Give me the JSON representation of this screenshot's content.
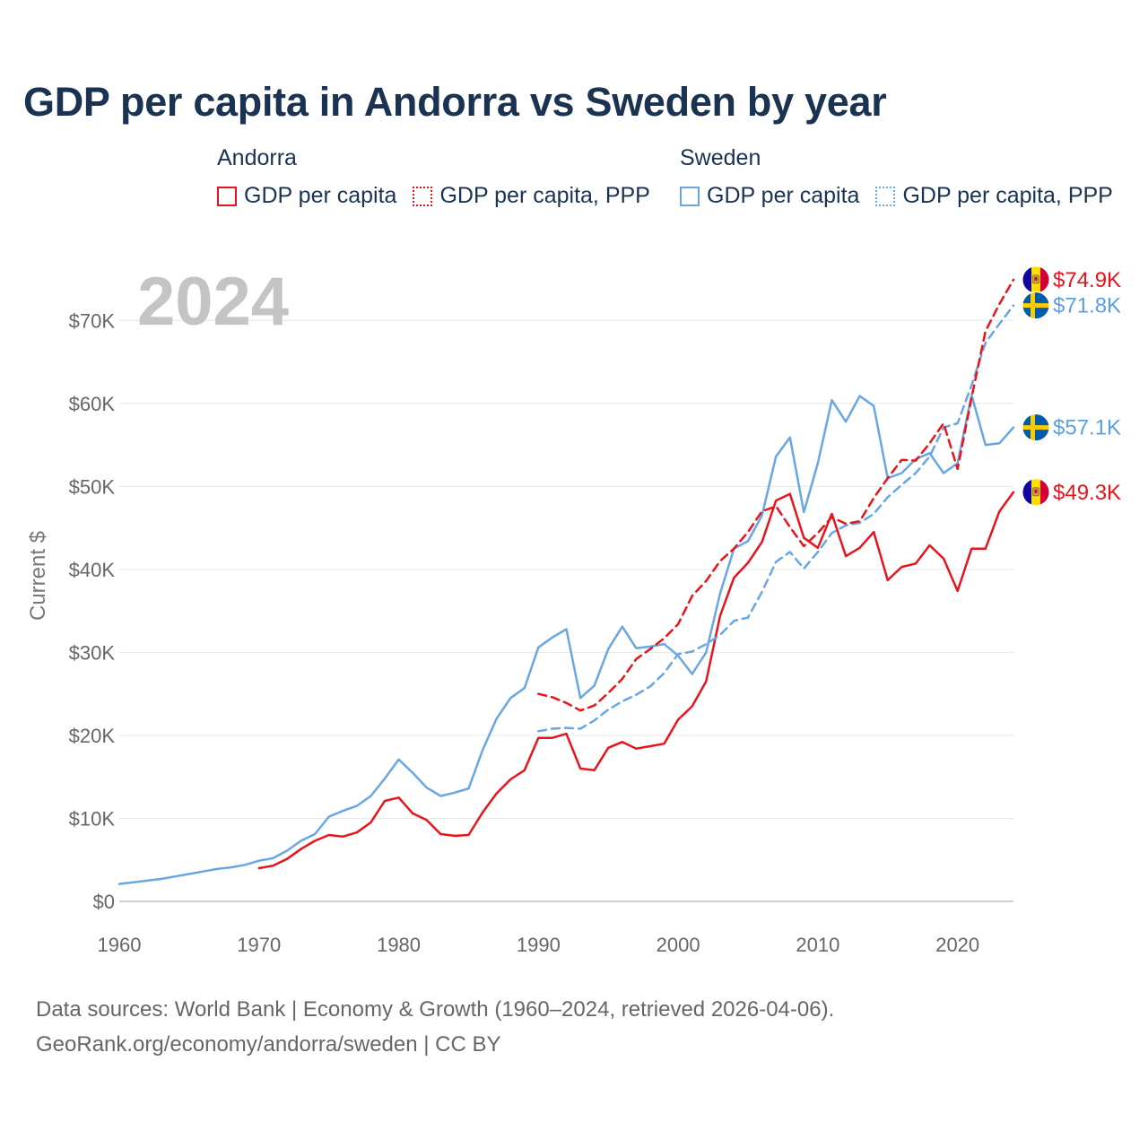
{
  "chart_data": {
    "type": "line",
    "title": "GDP per capita in Andorra vs Sweden by year",
    "ylabel": "Current $",
    "xlabel": "",
    "xlim": [
      1960,
      2024
    ],
    "ylim": [
      0,
      75000
    ],
    "year_label": "2024",
    "x_ticks": [
      {
        "value": 1960,
        "label": "1960"
      },
      {
        "value": 1970,
        "label": "1970"
      },
      {
        "value": 1980,
        "label": "1980"
      },
      {
        "value": 1990,
        "label": "1990"
      },
      {
        "value": 2000,
        "label": "2000"
      },
      {
        "value": 2010,
        "label": "2010"
      },
      {
        "value": 2020,
        "label": "2020"
      }
    ],
    "y_ticks": [
      {
        "value": 0,
        "label": "$0"
      },
      {
        "value": 10000,
        "label": "$10K"
      },
      {
        "value": 20000,
        "label": "$20K"
      },
      {
        "value": 30000,
        "label": "$30K"
      },
      {
        "value": 40000,
        "label": "$40K"
      },
      {
        "value": 50000,
        "label": "$50K"
      },
      {
        "value": 60000,
        "label": "$60K"
      },
      {
        "value": 70000,
        "label": "$70K"
      }
    ],
    "legend_groups": [
      {
        "title": "Andorra",
        "items": [
          "GDP per capita",
          "GDP per capita, PPP"
        ]
      },
      {
        "title": "Sweden",
        "items": [
          "GDP per capita",
          "GDP per capita, PPP"
        ]
      }
    ],
    "series": [
      {
        "name": "Andorra GDP per capita",
        "country": "Andorra",
        "color": "#e8141c",
        "dashed": false,
        "end_label": "$49.3K",
        "x": [
          1970,
          1971,
          1972,
          1973,
          1974,
          1975,
          1976,
          1977,
          1978,
          1979,
          1980,
          1981,
          1982,
          1983,
          1984,
          1985,
          1986,
          1987,
          1988,
          1989,
          1990,
          1991,
          1992,
          1993,
          1994,
          1995,
          1996,
          1997,
          1998,
          1999,
          2000,
          2001,
          2002,
          2003,
          2004,
          2005,
          2006,
          2007,
          2008,
          2009,
          2010,
          2011,
          2012,
          2013,
          2014,
          2015,
          2016,
          2017,
          2018,
          2019,
          2020,
          2021,
          2022,
          2023,
          2024
        ],
        "values": [
          4000,
          4300,
          5100,
          6300,
          7300,
          8000,
          7800,
          8300,
          9500,
          12100,
          12500,
          10600,
          9800,
          8100,
          7900,
          8000,
          10700,
          13000,
          14700,
          15800,
          19700,
          19700,
          20200,
          16000,
          15800,
          18500,
          19200,
          18400,
          18700,
          19000,
          21900,
          23500,
          26500,
          34400,
          39000,
          40800,
          43300,
          48300,
          49100,
          43800,
          42600,
          46700,
          41600,
          42600,
          44500,
          38700,
          40300,
          40700,
          42900,
          41300,
          37400,
          42500,
          42500,
          47000,
          49300
        ]
      },
      {
        "name": "Andorra GDP per capita, PPP",
        "country": "Andorra",
        "color": "#e8141c",
        "dashed": true,
        "end_label": "$74.9K",
        "x": [
          1990,
          1991,
          1992,
          1993,
          1994,
          1995,
          1996,
          1997,
          1998,
          1999,
          2000,
          2001,
          2002,
          2003,
          2004,
          2005,
          2006,
          2007,
          2008,
          2009,
          2010,
          2011,
          2012,
          2013,
          2014,
          2015,
          2016,
          2017,
          2018,
          2019,
          2020,
          2021,
          2022,
          2023,
          2024
        ],
        "values": [
          25000,
          24600,
          23900,
          23000,
          23600,
          25100,
          26800,
          29200,
          30400,
          31700,
          33400,
          36800,
          38600,
          41000,
          42500,
          44500,
          47000,
          47600,
          45100,
          42800,
          44400,
          46300,
          45500,
          45800,
          48600,
          51000,
          53200,
          53100,
          55200,
          57600,
          52100,
          60700,
          68700,
          72000,
          74900
        ]
      },
      {
        "name": "Sweden GDP per capita",
        "country": "Sweden",
        "color": "#68a6e4",
        "dashed": false,
        "end_label": "$57.1K",
        "x": [
          1960,
          1961,
          1962,
          1963,
          1964,
          1965,
          1966,
          1967,
          1968,
          1969,
          1970,
          1971,
          1972,
          1973,
          1974,
          1975,
          1976,
          1977,
          1978,
          1979,
          1980,
          1981,
          1982,
          1983,
          1984,
          1985,
          1986,
          1987,
          1988,
          1989,
          1990,
          1991,
          1992,
          1993,
          1994,
          1995,
          1996,
          1997,
          1998,
          1999,
          2000,
          2001,
          2002,
          2003,
          2004,
          2005,
          2006,
          2007,
          2008,
          2009,
          2010,
          2011,
          2012,
          2013,
          2014,
          2015,
          2016,
          2017,
          2018,
          2019,
          2020,
          2021,
          2022,
          2023,
          2024
        ],
        "values": [
          2100,
          2300,
          2500,
          2700,
          3000,
          3300,
          3600,
          3900,
          4100,
          4400,
          4900,
          5200,
          6100,
          7300,
          8100,
          10200,
          10900,
          11500,
          12700,
          14800,
          17100,
          15500,
          13700,
          12700,
          13100,
          13600,
          18200,
          22000,
          24500,
          25700,
          30600,
          31800,
          32800,
          24500,
          26000,
          30400,
          33100,
          30500,
          30700,
          31000,
          29600,
          27400,
          30000,
          37100,
          42500,
          43400,
          46500,
          53600,
          55900,
          46900,
          52800,
          60400,
          57800,
          60900,
          59700,
          51000,
          51600,
          53300,
          54000,
          51600,
          52800,
          61000,
          55000,
          55200,
          57100
        ]
      },
      {
        "name": "Sweden GDP per capita, PPP",
        "country": "Sweden",
        "color": "#68a6e4",
        "dashed": true,
        "end_label": "$71.8K",
        "x": [
          1990,
          1991,
          1992,
          1993,
          1994,
          1995,
          1996,
          1997,
          1998,
          1999,
          2000,
          2001,
          2002,
          2003,
          2004,
          2005,
          2006,
          2007,
          2008,
          2009,
          2010,
          2011,
          2012,
          2013,
          2014,
          2015,
          2016,
          2017,
          2018,
          2019,
          2020,
          2021,
          2022,
          2023,
          2024
        ],
        "values": [
          20500,
          20800,
          20900,
          20800,
          21800,
          23100,
          24100,
          24900,
          25900,
          27500,
          29800,
          30100,
          31000,
          32100,
          33800,
          34200,
          37300,
          40900,
          42100,
          40100,
          42100,
          44400,
          45300,
          45600,
          46700,
          48700,
          50200,
          51600,
          53600,
          57100,
          57600,
          62200,
          67300,
          69600,
          71800
        ]
      }
    ],
    "footer": {
      "line1": "Data sources: World Bank | Economy & Growth (1960–2024, retrieved 2026-04-06).",
      "line2": "GeoRank.org/economy/andorra/sweden | CC BY"
    }
  }
}
